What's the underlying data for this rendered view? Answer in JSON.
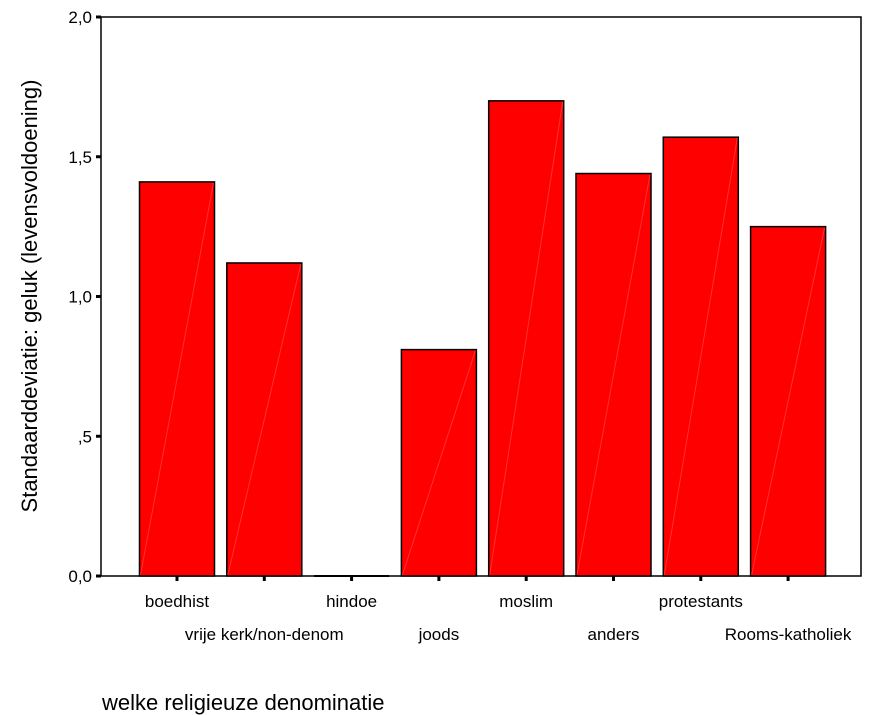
{
  "chart_data": {
    "type": "bar",
    "ylabel": "Standaarddeviatie: geluk (levensvoldoening)",
    "xlabel": "welke religieuze denominatie",
    "ylim": [
      0,
      2
    ],
    "yticks": [
      {
        "value": 0,
        "label": "0,0"
      },
      {
        "value": 0.5,
        "label": ",5"
      },
      {
        "value": 1,
        "label": "1,0"
      },
      {
        "value": 1.5,
        "label": "1,5"
      },
      {
        "value": 2,
        "label": "2,0"
      }
    ],
    "categories": [
      "boedhist",
      "vrije kerk/non-denom",
      "hindoe",
      "joods",
      "moslim",
      "anders",
      "protestants",
      "Rooms-katholiek"
    ],
    "values": [
      1.41,
      1.12,
      0.0,
      0.81,
      1.7,
      1.44,
      1.57,
      1.25
    ],
    "bar_color": "#ff0000",
    "grid": false,
    "legend": "none"
  }
}
